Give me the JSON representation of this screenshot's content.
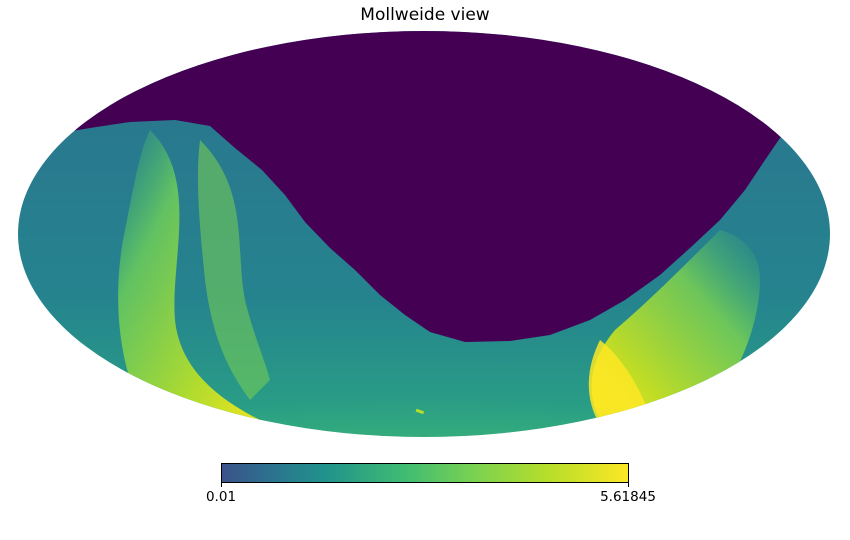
{
  "title": "Mollweide view",
  "projection": "mollweide",
  "colormap": {
    "name": "viridis",
    "stops": [
      "#440154",
      "#3b528b",
      "#21918c",
      "#5ec962",
      "#fde725"
    ],
    "min": 0.01,
    "max": 5.61845,
    "min_label": "0.01",
    "max_label": "5.61845"
  },
  "masked_region_color": "#440154",
  "background_color": "#ffffff"
}
